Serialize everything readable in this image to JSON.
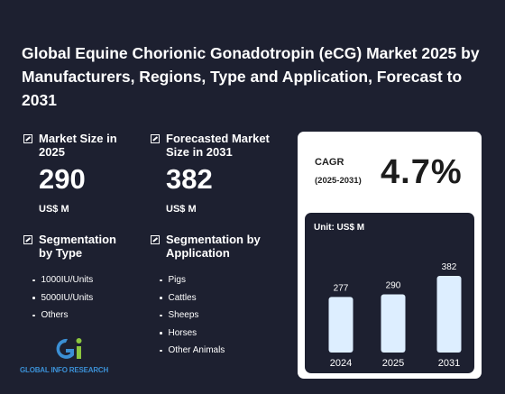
{
  "title": "Global Equine Chorionic Gonadotropin (eCG) Market 2025 by Manufacturers, Regions, Type and Application, Forecast to 2031",
  "market_size": {
    "label": "Market Size in 2025",
    "value": "290",
    "unit": "US$ M"
  },
  "forecast": {
    "label": "Forecasted Market Size in 2031",
    "value": "382",
    "unit": "US$ M"
  },
  "seg_type": {
    "label": "Segmentation by Type",
    "items": [
      "1000IU/Units",
      "5000IU/Units",
      "Others"
    ]
  },
  "seg_app": {
    "label": "Segmentation by Application",
    "items": [
      "Pigs",
      "Cattles",
      "Sheeps",
      "Horses",
      "Other Animals"
    ]
  },
  "cagr": {
    "label": "CAGR",
    "years": "(2025-2031)",
    "value": "4.7%"
  },
  "logo": {
    "name": "GLOBAL INFO RESEARCH"
  },
  "colors": {
    "background": "#1d2030",
    "bar": "#ddeeff",
    "logo_blue": "#3b8fd4",
    "logo_green": "#8cc63f"
  },
  "chart_data": {
    "type": "bar",
    "unit_label": "Unit: US$ M",
    "categories": [
      "2024",
      "2025",
      "2031"
    ],
    "values": [
      277,
      290,
      382
    ],
    "value_labels": [
      "277",
      "290",
      "382"
    ]
  }
}
